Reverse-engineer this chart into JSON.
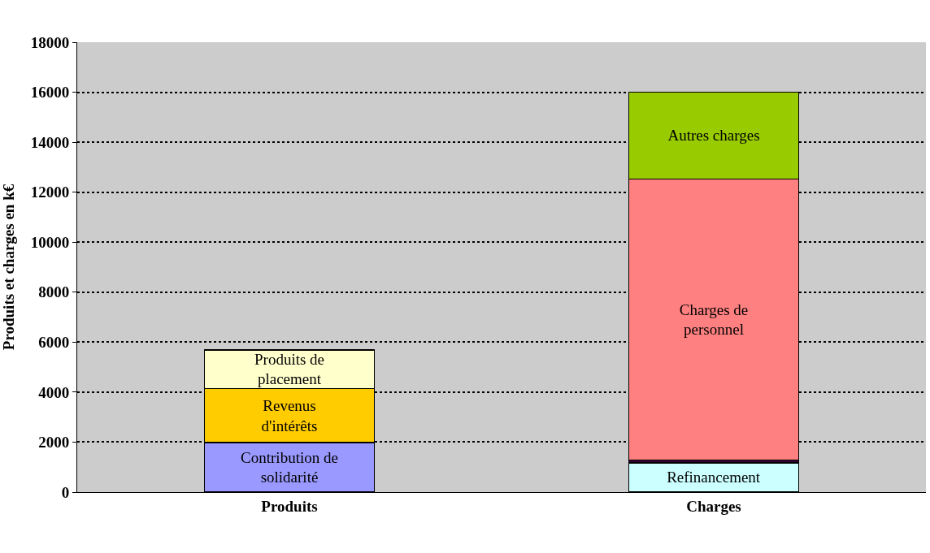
{
  "chart_data": {
    "type": "bar",
    "stacked": true,
    "ylabel": "Produits et charges en k€",
    "categories": [
      "Produits",
      "Charges"
    ],
    "series": [
      {
        "name": "Contribution de solidarité",
        "color": "#9999ff",
        "values": [
          1980,
          null
        ]
      },
      {
        "name": "Revenus d'intérêts",
        "color": "#ffcc00",
        "values": [
          2170,
          null
        ]
      },
      {
        "name": "Produits de placement",
        "color": "#ffffcc",
        "values": [
          1540,
          null
        ]
      },
      {
        "name": "Refinancement",
        "color": "#ccffff",
        "values": [
          null,
          1170
        ]
      },
      {
        "color": "#330033",
        "values": [
          null,
          120
        ]
      },
      {
        "name": "Charges de personnel",
        "color": "#ff8080",
        "values": [
          null,
          11230
        ]
      },
      {
        "name": "Autres charges",
        "color": "#99cc00",
        "values": [
          null,
          3490
        ]
      }
    ],
    "ylim": [
      0,
      18000
    ],
    "yticks": [
      0,
      2000,
      4000,
      6000,
      8000,
      10000,
      12000,
      14000,
      16000,
      18000
    ],
    "grid": "y",
    "legend": false
  }
}
